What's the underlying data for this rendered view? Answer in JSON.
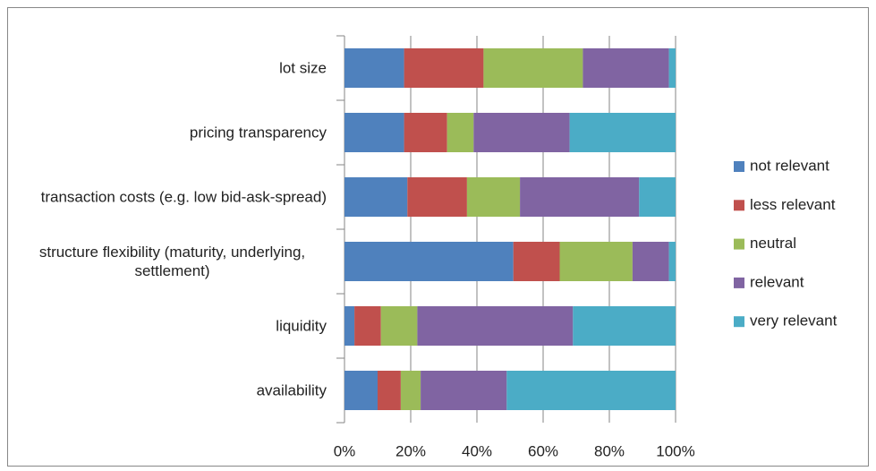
{
  "chart_data": {
    "type": "stacked_barh",
    "categories": [
      "lot size",
      "pricing transparency",
      "transaction costs (e.g. low bid-ask-spread)",
      "structure flexibility (maturity, underlying, settlement)",
      "liquidity",
      "availability"
    ],
    "series": [
      {
        "name": "not relevant",
        "color": "#4f81bd",
        "values": [
          18,
          18,
          19,
          51,
          3,
          10
        ]
      },
      {
        "name": "less relevant",
        "color": "#c0504d",
        "values": [
          24,
          13,
          18,
          14,
          8,
          7
        ]
      },
      {
        "name": "neutral",
        "color": "#9bbb59",
        "values": [
          30,
          8,
          16,
          22,
          11,
          6
        ]
      },
      {
        "name": "relevant",
        "color": "#8064a2",
        "values": [
          26,
          29,
          36,
          11,
          47,
          26
        ]
      },
      {
        "name": "very relevant",
        "color": "#4bacc6",
        "values": [
          2,
          32,
          11,
          2,
          31,
          51
        ]
      }
    ],
    "xlim": [
      0,
      100
    ],
    "xticks": [
      {
        "value": 0,
        "label": "0%"
      },
      {
        "value": 20,
        "label": "20%"
      },
      {
        "value": 40,
        "label": "40%"
      },
      {
        "value": 60,
        "label": "60%"
      },
      {
        "value": 80,
        "label": "80%"
      },
      {
        "value": 100,
        "label": "100%"
      }
    ],
    "grid": true,
    "legend": "right"
  }
}
